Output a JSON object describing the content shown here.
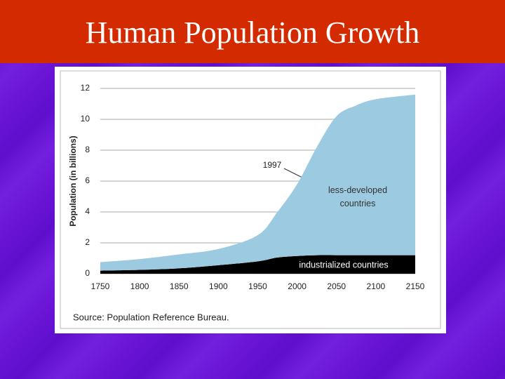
{
  "chart_data": {
    "type": "stacked_area",
    "title": "Human Population Growth",
    "ylabel": "Population (in billions)",
    "source": "Source: Population Reference Bureau.",
    "annotations": [
      "1997"
    ],
    "x": [
      1750,
      1800,
      1850,
      1900,
      1950,
      1975,
      2000,
      2025,
      2050,
      2075,
      2100,
      2150
    ],
    "series": [
      {
        "name": "industrialized countries",
        "color": "#000000",
        "values": [
          0.2,
          0.25,
          0.35,
          0.55,
          0.8,
          1.05,
          1.15,
          1.2,
          1.2,
          1.2,
          1.2,
          1.2
        ]
      },
      {
        "name": "less-developed countries",
        "color": "#9ccae0",
        "values": [
          0.55,
          0.7,
          0.9,
          1.05,
          1.7,
          2.95,
          4.65,
          7.0,
          9.0,
          9.7,
          10.1,
          10.4
        ]
      }
    ],
    "xlim": [
      1750,
      2150
    ],
    "xticks": [
      1750,
      1800,
      1850,
      1900,
      1950,
      2000,
      2050,
      2100,
      2150
    ],
    "ylim": [
      0,
      12
    ],
    "yticks": [
      0,
      2,
      4,
      6,
      8,
      10,
      12
    ],
    "grid": true
  }
}
